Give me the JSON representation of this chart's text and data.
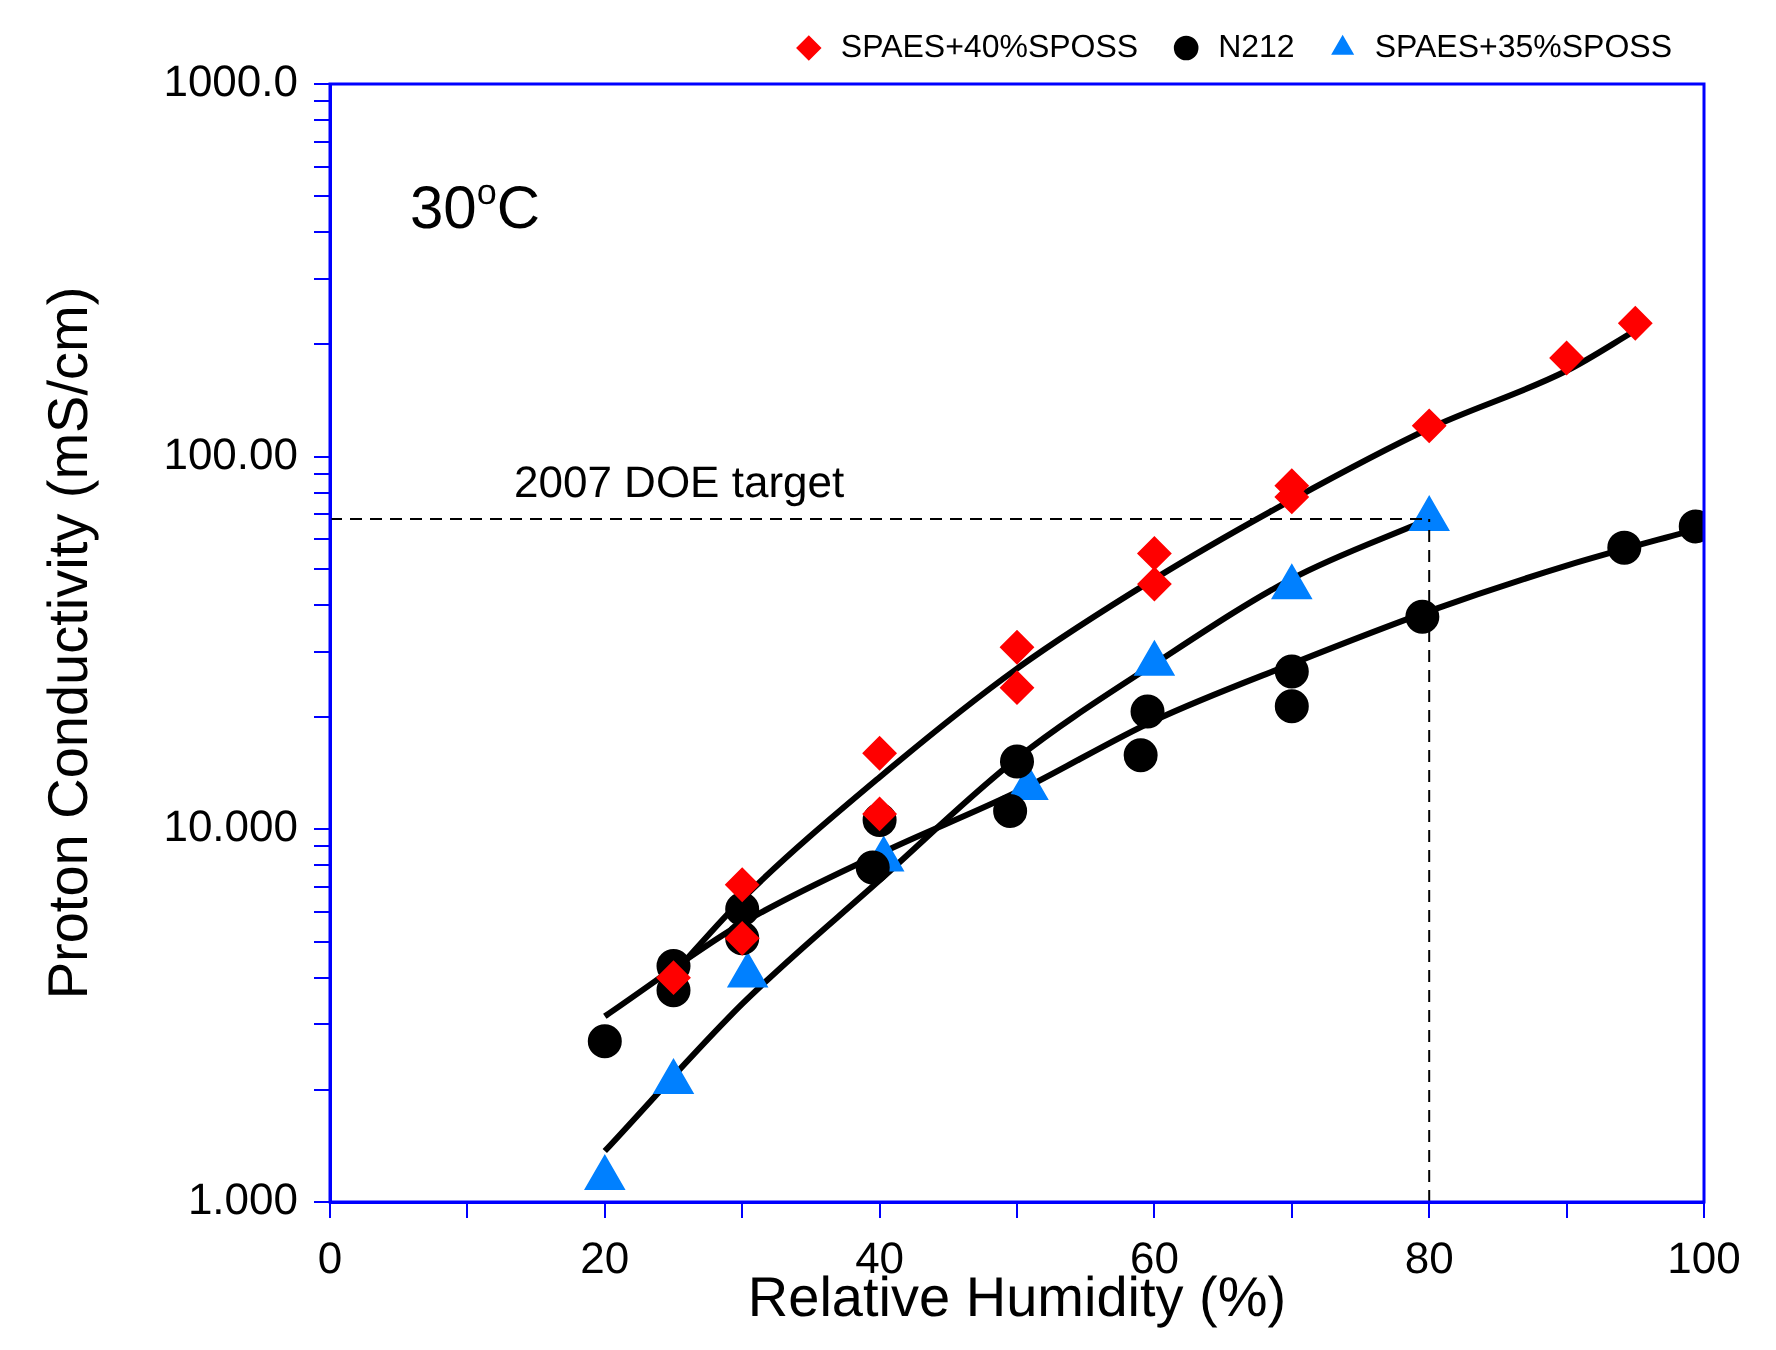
{
  "chart_data": {
    "type": "scatter",
    "xlabel": "Relative Humidity (%)",
    "ylabel": "Proton Conductivity (mS/cm)",
    "log": "y",
    "grid": false,
    "legend": "top right",
    "xlim": [
      0,
      100
    ],
    "xticks": [
      0,
      {
        "value": 10,
        "label": null
      },
      20,
      {
        "value": 30,
        "label": null
      },
      40,
      {
        "value": 50,
        "label": null
      },
      60,
      {
        "value": 70,
        "label": null
      },
      80,
      {
        "value": 90,
        "label": null
      },
      100
    ],
    "ylim": [
      1,
      1000
    ],
    "yticks": [
      {
        "value": 1,
        "label": "1.000"
      },
      {
        "value": 2,
        "label": null
      },
      {
        "value": 3,
        "label": null
      },
      {
        "value": 4,
        "label": null
      },
      {
        "value": 5,
        "label": null
      },
      {
        "value": 6,
        "label": null
      },
      {
        "value": 7,
        "label": null
      },
      {
        "value": 8,
        "label": null
      },
      {
        "value": 9,
        "label": null
      },
      {
        "value": 10,
        "label": "10.000"
      },
      {
        "value": 20,
        "label": null
      },
      {
        "value": 30,
        "label": null
      },
      {
        "value": 40,
        "label": null
      },
      {
        "value": 50,
        "label": null
      },
      {
        "value": 60,
        "label": null
      },
      {
        "value": 70,
        "label": null
      },
      {
        "value": 80,
        "label": null
      },
      {
        "value": 90,
        "label": null
      },
      {
        "value": 100,
        "label": "100.00"
      },
      {
        "value": 200,
        "label": null
      },
      {
        "value": 300,
        "label": null
      },
      {
        "value": 400,
        "label": null
      },
      {
        "value": 500,
        "label": null
      },
      {
        "value": 600,
        "label": null
      },
      {
        "value": 700,
        "label": null
      },
      {
        "value": 800,
        "label": null
      },
      {
        "value": 900,
        "label": null
      },
      {
        "value": 1000,
        "label": "1000.0"
      }
    ],
    "series": [
      {
        "name": "SPAES+40%SPOSS",
        "type": "scatter",
        "marker": "diamond",
        "color": "#ff0000",
        "x": [
          25,
          30,
          30,
          40,
          40,
          50,
          50,
          60,
          60,
          70,
          70,
          80,
          90,
          95
        ],
        "values": [
          4.0,
          7.1,
          5.1,
          16.0,
          11.0,
          30.8,
          24.0,
          55,
          45.5,
          83.6,
          78,
          121,
          184,
          228
        ]
      },
      {
        "name": "N212",
        "type": "scatter",
        "marker": "circle",
        "color": "#000000",
        "x": [
          20,
          25,
          25,
          30,
          30,
          39.5,
          40,
          49.5,
          50,
          59,
          59.5,
          70,
          70,
          79.5,
          94.2,
          99.4
        ],
        "values": [
          2.7,
          4.3,
          3.7,
          6.1,
          5.1,
          7.9,
          10.6,
          11.2,
          15.2,
          15.8,
          20.7,
          21.4,
          26.5,
          37.2,
          57,
          65
        ]
      },
      {
        "name": "SPAES+35%SPOSS",
        "type": "scatter",
        "marker": "triangle",
        "color": "#0080ff",
        "x": [
          20,
          25,
          30.4,
          40.3,
          50.8,
          60,
          70,
          80
        ],
        "values": [
          1.16,
          2.1,
          4.05,
          8.3,
          12.9,
          27.8,
          44.6,
          68
        ]
      },
      {
        "type": "line",
        "marker": "none",
        "line_style": "solid",
        "color": "#000000",
        "x": [
          25,
          30,
          40,
          50,
          60,
          70,
          80,
          90,
          95
        ],
        "values": [
          4.1,
          6.5,
          13.8,
          27,
          47,
          76.6,
          119,
          170,
          218
        ]
      },
      {
        "type": "line",
        "marker": "none",
        "line_style": "solid",
        "color": "#000000",
        "x": [
          20,
          30,
          40,
          50,
          60,
          70,
          80,
          90,
          100
        ],
        "values": [
          3.15,
          5.6,
          8.6,
          12.6,
          19.6,
          27.8,
          38.5,
          51,
          64.7
        ]
      },
      {
        "type": "line",
        "marker": "none",
        "line_style": "solid",
        "color": "#000000",
        "x": [
          20,
          30,
          40,
          50,
          60,
          70,
          80
        ],
        "values": [
          1.37,
          3.4,
          7.3,
          15.5,
          27.8,
          47,
          68
        ]
      }
    ],
    "ref_lines": [
      {
        "axis": "y",
        "value": 68,
        "label": "2007 DOE target",
        "line_style": "dashed",
        "color": "#000000"
      },
      {
        "axis": "x",
        "value": 80,
        "line_style": "dashed",
        "color": "#000000"
      }
    ],
    "annotations": [
      "30$^{o}$C"
    ]
  }
}
